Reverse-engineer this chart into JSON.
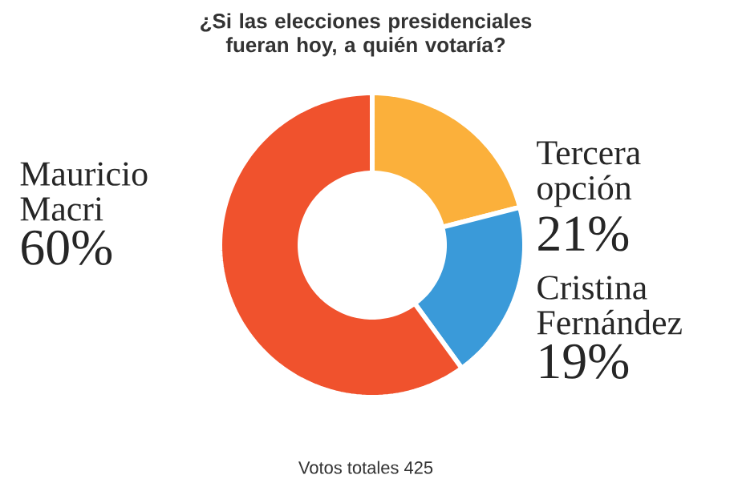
{
  "chart_data": {
    "type": "donut",
    "title": "¿Si las elecciones presidenciales fueran hoy, a quién votaría?",
    "categories": [
      "Tercera opción",
      "Cristina Fernández",
      "Mauricio Macri"
    ],
    "values": [
      21,
      19,
      60
    ],
    "value_labels": [
      "21%",
      "19%",
      "60%"
    ],
    "colors": [
      "#fbb03b",
      "#3a9ad9",
      "#f0522d"
    ],
    "annotations": [
      "Votos totales 425"
    ]
  }
}
